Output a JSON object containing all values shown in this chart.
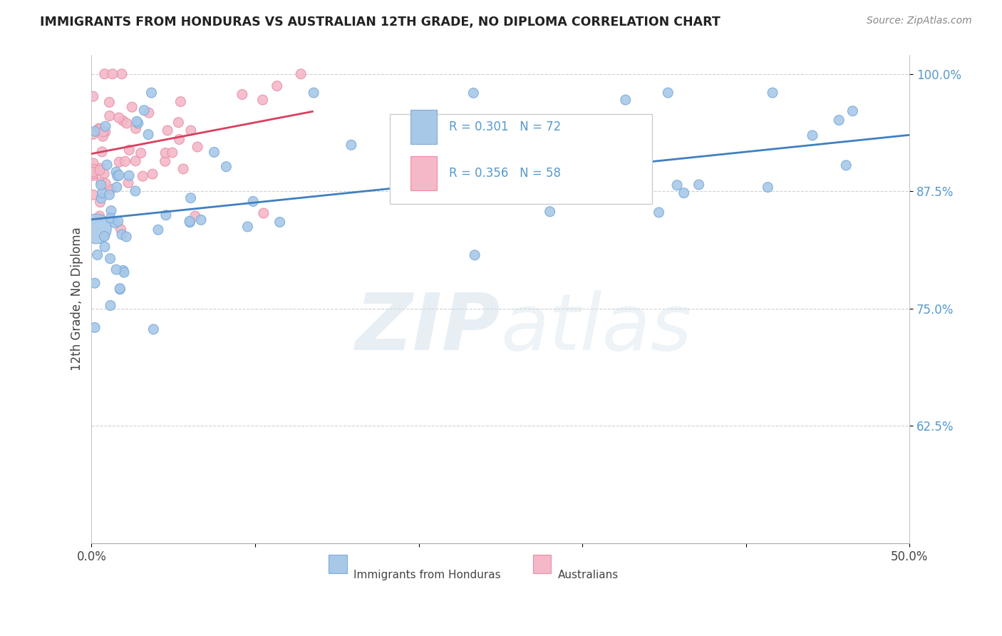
{
  "title": "IMMIGRANTS FROM HONDURAS VS AUSTRALIAN 12TH GRADE, NO DIPLOMA CORRELATION CHART",
  "source": "Source: ZipAtlas.com",
  "ylabel": "12th Grade, No Diploma",
  "xlim": [
    0.0,
    0.5
  ],
  "ylim": [
    0.5,
    1.02
  ],
  "xticks": [
    0.0,
    0.1,
    0.2,
    0.3,
    0.4,
    0.5
  ],
  "xtick_labels": [
    "0.0%",
    "",
    "",
    "",
    "",
    "50.0%"
  ],
  "yticks": [
    0.625,
    0.75,
    0.875,
    1.0
  ],
  "ytick_labels": [
    "62.5%",
    "75.0%",
    "87.5%",
    "100.0%"
  ],
  "blue_color": "#a8c8e8",
  "blue_edge_color": "#7aabda",
  "pink_color": "#f4b8c8",
  "pink_edge_color": "#e890a8",
  "blue_line_color": "#4080c0",
  "pink_line_color": "#d84060",
  "tick_color": "#5599cc",
  "grid_color": "#cccccc",
  "blue_line_x": [
    0.0,
    0.5
  ],
  "blue_line_y": [
    0.845,
    0.935
  ],
  "pink_line_x": [
    0.0,
    0.135
  ],
  "pink_line_y": [
    0.915,
    0.96
  ],
  "legend_R1": "R = 0.301   N = 72",
  "legend_R2": "R = 0.356   N = 58",
  "bottom_legend1": "Immigrants from Honduras",
  "bottom_legend2": "Australians"
}
